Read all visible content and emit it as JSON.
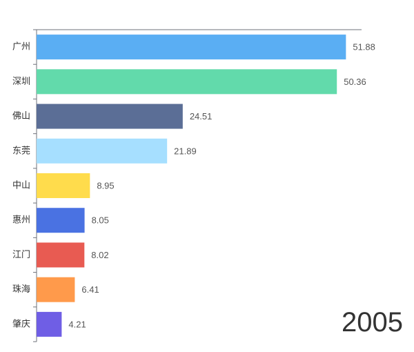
{
  "chart_data": {
    "type": "bar",
    "orientation": "horizontal",
    "categories": [
      "广州",
      "深圳",
      "佛山",
      "东莞",
      "中山",
      "惠州",
      "江门",
      "珠海",
      "肇庆"
    ],
    "values": [
      51.88,
      50.36,
      24.51,
      21.89,
      8.95,
      8.05,
      8.02,
      6.41,
      4.21
    ],
    "value_labels": [
      "51.88",
      "50.36",
      "24.51",
      "21.89",
      "8.95",
      "8.05",
      "8.02",
      "6.41",
      "4.21"
    ],
    "colors": [
      "#5aaef3",
      "#62daab",
      "#5b6e96",
      "#a6dfff",
      "#ffdc4c",
      "#4a72e2",
      "#e85b52",
      "#ff9a4b",
      "#6f5ee5"
    ],
    "xlim": [
      0,
      54.5
    ],
    "grid": false,
    "legend": "none",
    "year": "2005"
  }
}
